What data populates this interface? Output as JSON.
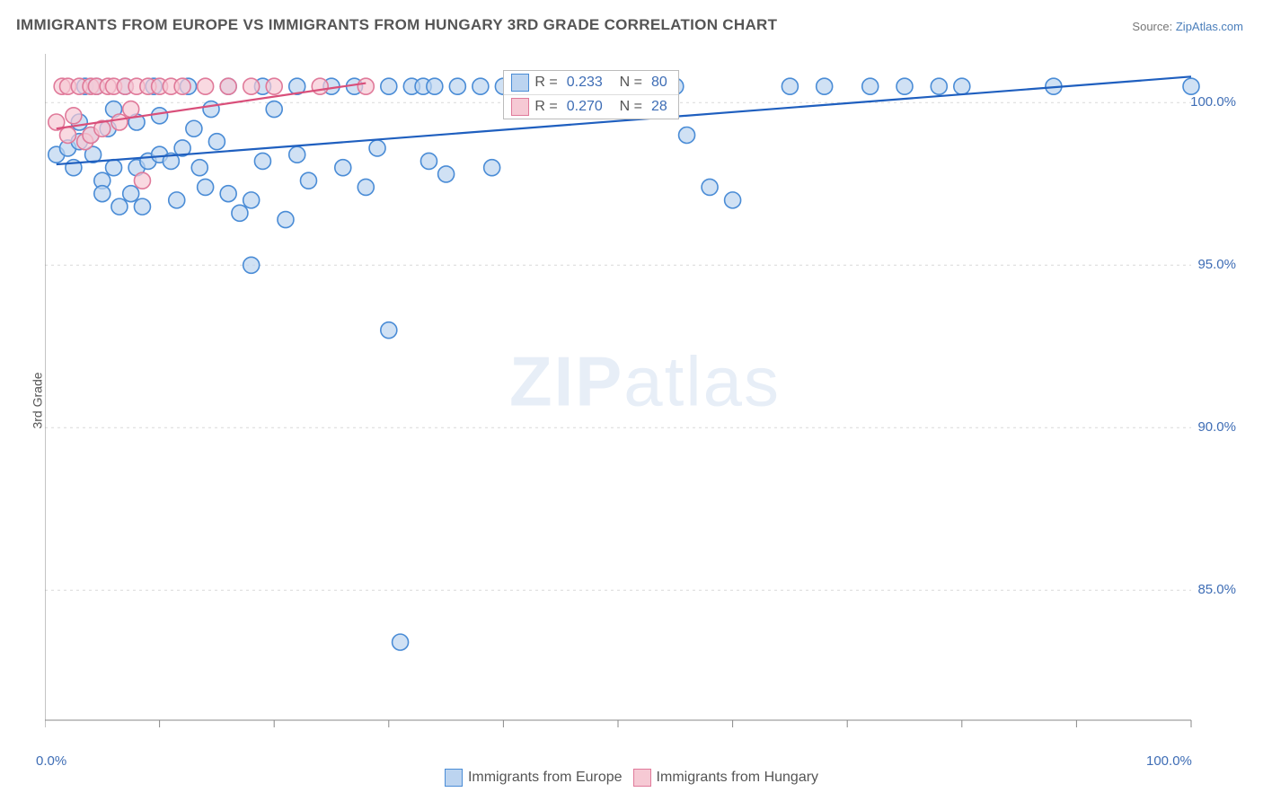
{
  "title": "IMMIGRANTS FROM EUROPE VS IMMIGRANTS FROM HUNGARY 3RD GRADE CORRELATION CHART",
  "source_label": "Source:",
  "source_name": "ZipAtlas.com",
  "ylabel": "3rd Grade",
  "watermark_bold": "ZIP",
  "watermark_rest": "atlas",
  "chart": {
    "type": "scatter",
    "xlim": [
      0,
      100
    ],
    "ylim": [
      81,
      101.5
    ],
    "ytick_values": [
      85.0,
      90.0,
      95.0,
      100.0
    ],
    "ytick_labels": [
      "85.0%",
      "90.0%",
      "95.0%",
      "100.0%"
    ],
    "xtick_values": [
      0,
      100
    ],
    "xtick_labels": [
      "0.0%",
      "100.0%"
    ],
    "xtick_minor": [
      10,
      20,
      30,
      40,
      50,
      60,
      70,
      80,
      90
    ],
    "grid_color": "#d9d9d9",
    "background_color": "#ffffff",
    "axis_color": "#888888",
    "marker_radius": 9,
    "marker_stroke_width": 1.6,
    "trendline_width": 2.2
  },
  "series": [
    {
      "name": "Immigrants from Europe",
      "fill": "#bcd4f0",
      "stroke": "#4a8cd6",
      "line_color": "#1f5fbf",
      "R": "0.233",
      "N": "80",
      "trend": {
        "x1": 1,
        "y1": 98.1,
        "x2": 100,
        "y2": 100.8
      },
      "points": [
        [
          1,
          98.4
        ],
        [
          2,
          98.6
        ],
        [
          2.5,
          98.0
        ],
        [
          3,
          98.8
        ],
        [
          3,
          99.4
        ],
        [
          3.5,
          100.5
        ],
        [
          4,
          99.0
        ],
        [
          4.2,
          98.4
        ],
        [
          4.5,
          100.5
        ],
        [
          5,
          97.6
        ],
        [
          5.5,
          99.2
        ],
        [
          6,
          98.0
        ],
        [
          6,
          99.8
        ],
        [
          7,
          100.5
        ],
        [
          7.5,
          97.2
        ],
        [
          8,
          98.0
        ],
        [
          8,
          99.4
        ],
        [
          8.5,
          96.8
        ],
        [
          9,
          98.2
        ],
        [
          9.5,
          100.5
        ],
        [
          10,
          98.4
        ],
        [
          10,
          99.6
        ],
        [
          11,
          98.2
        ],
        [
          11.5,
          97.0
        ],
        [
          12,
          98.6
        ],
        [
          12.5,
          100.5
        ],
        [
          13,
          99.2
        ],
        [
          13.5,
          98.0
        ],
        [
          14,
          97.4
        ],
        [
          14.5,
          99.8
        ],
        [
          15,
          98.8
        ],
        [
          16,
          100.5
        ],
        [
          16,
          97.2
        ],
        [
          17,
          96.6
        ],
        [
          18,
          97.0
        ],
        [
          18,
          95.0
        ],
        [
          19,
          98.2
        ],
        [
          19,
          100.5
        ],
        [
          20,
          99.8
        ],
        [
          21,
          96.4
        ],
        [
          22,
          98.4
        ],
        [
          22,
          100.5
        ],
        [
          23,
          97.6
        ],
        [
          25,
          100.5
        ],
        [
          26,
          98.0
        ],
        [
          27,
          100.5
        ],
        [
          28,
          97.4
        ],
        [
          29,
          98.6
        ],
        [
          30,
          100.5
        ],
        [
          30,
          93.0
        ],
        [
          32,
          100.5
        ],
        [
          33,
          100.5
        ],
        [
          33.5,
          98.2
        ],
        [
          34,
          100.5
        ],
        [
          35,
          97.8
        ],
        [
          36,
          100.5
        ],
        [
          38,
          100.5
        ],
        [
          39,
          98.0
        ],
        [
          40,
          100.5
        ],
        [
          42,
          100.5
        ],
        [
          44,
          100.5
        ],
        [
          45,
          100.5
        ],
        [
          48,
          100.5
        ],
        [
          50,
          100.5
        ],
        [
          52,
          100.5
        ],
        [
          55,
          100.5
        ],
        [
          56,
          99.0
        ],
        [
          58,
          97.4
        ],
        [
          60,
          97.0
        ],
        [
          65,
          100.5
        ],
        [
          68,
          100.5
        ],
        [
          72,
          100.5
        ],
        [
          75,
          100.5
        ],
        [
          78,
          100.5
        ],
        [
          80,
          100.5
        ],
        [
          88,
          100.5
        ],
        [
          100,
          100.5
        ],
        [
          31,
          83.4
        ],
        [
          5,
          97.2
        ],
        [
          6.5,
          96.8
        ]
      ]
    },
    {
      "name": "Immigrants from Hungary",
      "fill": "#f6c9d4",
      "stroke": "#e07a9a",
      "line_color": "#d94f7a",
      "R": "0.270",
      "N": "28",
      "trend": {
        "x1": 1,
        "y1": 99.2,
        "x2": 28,
        "y2": 100.6
      },
      "points": [
        [
          1,
          99.4
        ],
        [
          1.5,
          100.5
        ],
        [
          2,
          99.0
        ],
        [
          2,
          100.5
        ],
        [
          2.5,
          99.6
        ],
        [
          3,
          100.5
        ],
        [
          3.5,
          98.8
        ],
        [
          4,
          100.5
        ],
        [
          4,
          99.0
        ],
        [
          4.5,
          100.5
        ],
        [
          5,
          99.2
        ],
        [
          5.5,
          100.5
        ],
        [
          6,
          100.5
        ],
        [
          6.5,
          99.4
        ],
        [
          7,
          100.5
        ],
        [
          7.5,
          99.8
        ],
        [
          8,
          100.5
        ],
        [
          8.5,
          97.6
        ],
        [
          9,
          100.5
        ],
        [
          10,
          100.5
        ],
        [
          11,
          100.5
        ],
        [
          12,
          100.5
        ],
        [
          14,
          100.5
        ],
        [
          16,
          100.5
        ],
        [
          18,
          100.5
        ],
        [
          20,
          100.5
        ],
        [
          24,
          100.5
        ],
        [
          28,
          100.5
        ]
      ]
    }
  ],
  "legend": {
    "r_label": "R =",
    "n_label": "N ="
  },
  "bottom_legend": [
    "Immigrants from Europe",
    "Immigrants from Hungary"
  ]
}
